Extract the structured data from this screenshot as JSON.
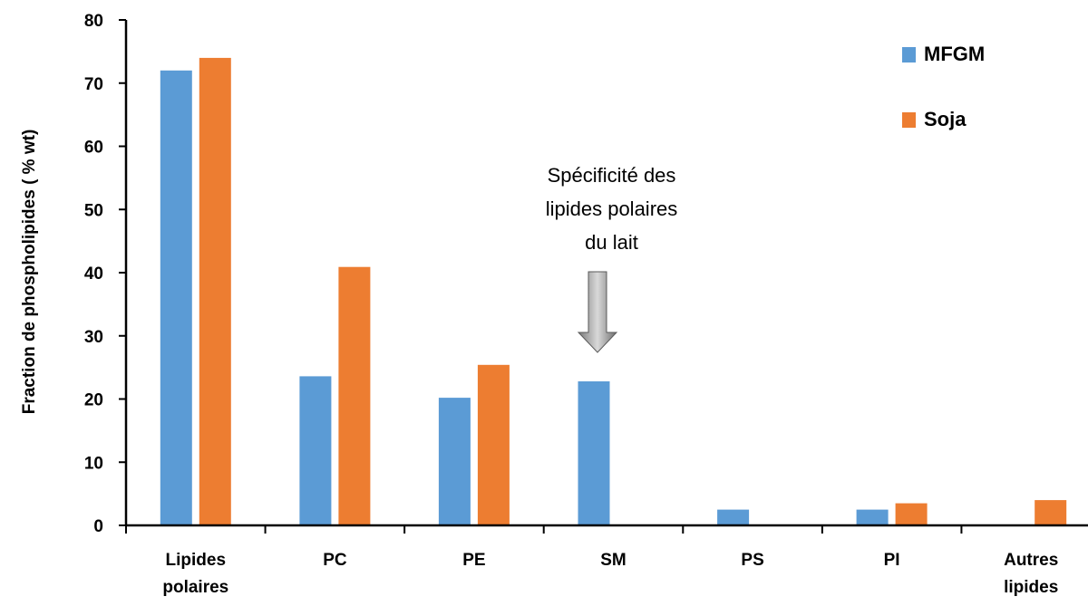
{
  "chart_data": {
    "type": "bar",
    "title": "",
    "xlabel": "",
    "ylabel": "Fraction de phospholipides ( % wt)",
    "ylim": [
      0,
      80
    ],
    "yticks": [
      0,
      10,
      20,
      30,
      40,
      50,
      60,
      70,
      80
    ],
    "categories": [
      [
        "Lipides",
        "polaires"
      ],
      [
        "PC"
      ],
      [
        "PE"
      ],
      [
        "SM"
      ],
      [
        "PS"
      ],
      [
        "PI"
      ],
      [
        "Autres",
        "lipides"
      ]
    ],
    "series": [
      {
        "name": "MFGM",
        "color": "#5b9bd5",
        "values": [
          72,
          23.6,
          20.2,
          22.8,
          2.5,
          2.5,
          0
        ]
      },
      {
        "name": "Soja",
        "color": "#ed7d31",
        "values": [
          74,
          40.9,
          25.4,
          0,
          0,
          3.5,
          4
        ]
      }
    ],
    "legend_position": "top-right",
    "grid": false,
    "annotation": {
      "lines": [
        "Spécificité des",
        "lipides polaires",
        "du lait"
      ],
      "points_to_category": "SM",
      "arrow": "gray-down-arrow"
    }
  }
}
